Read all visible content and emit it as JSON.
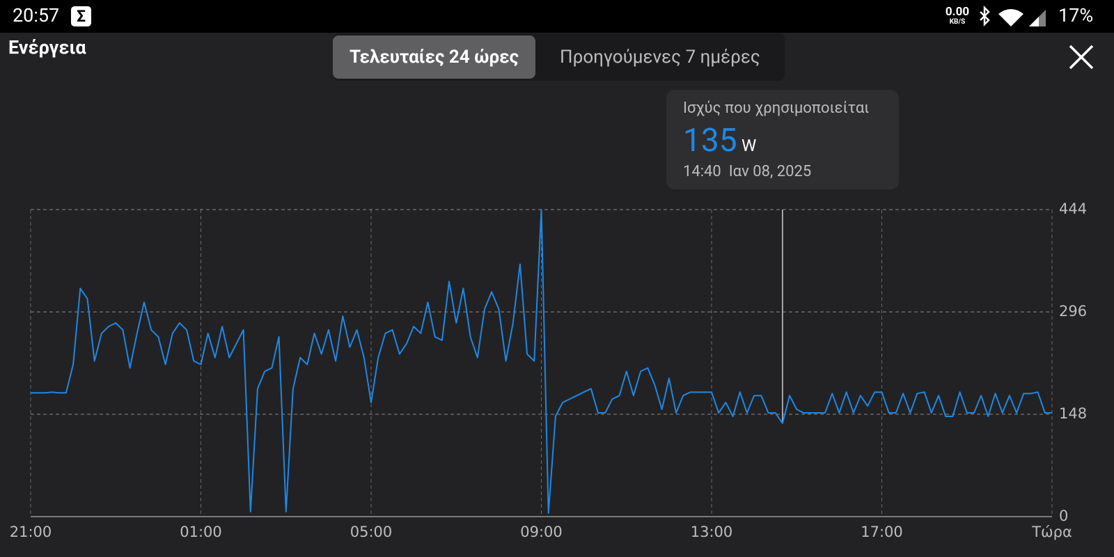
{
  "status_bar": {
    "time": "20:57",
    "app_icon": "Σ",
    "net_speed": "0.00",
    "net_unit": "KB/S",
    "battery": "17%"
  },
  "header": {
    "title": "Ενέργεια",
    "tabs": [
      "Τελευταίες 24 ώρες",
      "Προηγούμενες 7 ημέρες"
    ]
  },
  "tooltip": {
    "title": "Ισχύς που χρησιμοποιείται",
    "unit": "W",
    "time": "14:40  Ιαν 08, 2025"
  },
  "chart_data": {
    "type": "line",
    "color": "#1e88e5",
    "grid": true,
    "ylim": [
      0,
      444
    ],
    "yticks": [
      0,
      148,
      296,
      444
    ],
    "highlight_index": 106,
    "categories": [
      "21:00",
      null,
      null,
      null,
      null,
      null,
      null,
      null,
      null,
      null,
      null,
      null,
      null,
      null,
      null,
      null,
      null,
      null,
      null,
      null,
      null,
      null,
      null,
      null,
      "01:00",
      null,
      null,
      null,
      null,
      null,
      null,
      null,
      null,
      null,
      null,
      null,
      null,
      null,
      null,
      null,
      null,
      null,
      null,
      null,
      null,
      null,
      null,
      null,
      "05:00",
      null,
      null,
      null,
      null,
      null,
      null,
      null,
      null,
      null,
      null,
      null,
      null,
      null,
      null,
      null,
      null,
      null,
      null,
      null,
      null,
      null,
      null,
      null,
      "09:00",
      null,
      null,
      null,
      null,
      null,
      null,
      null,
      null,
      null,
      null,
      null,
      null,
      null,
      null,
      null,
      null,
      null,
      null,
      null,
      null,
      null,
      null,
      null,
      "13:00",
      null,
      null,
      null,
      null,
      null,
      null,
      null,
      null,
      null,
      null,
      null,
      null,
      null,
      null,
      null,
      null,
      null,
      null,
      null,
      null,
      null,
      null,
      null,
      "17:00",
      null,
      null,
      null,
      null,
      null,
      null,
      null,
      null,
      null,
      null,
      null,
      null,
      null,
      null,
      null,
      null,
      null,
      null,
      null,
      null,
      null,
      null,
      null,
      "Τώρα"
    ],
    "values": [
      179,
      179,
      179,
      180,
      179,
      179,
      220,
      330,
      315,
      225,
      265,
      275,
      280,
      270,
      215,
      265,
      310,
      270,
      260,
      220,
      265,
      280,
      270,
      225,
      220,
      265,
      230,
      275,
      230,
      250,
      270,
      7,
      185,
      210,
      215,
      260,
      7,
      185,
      230,
      220,
      265,
      235,
      270,
      225,
      290,
      245,
      270,
      230,
      165,
      230,
      265,
      270,
      235,
      250,
      275,
      265,
      310,
      260,
      255,
      340,
      280,
      330,
      260,
      230,
      300,
      325,
      300,
      225,
      280,
      365,
      235,
      225,
      444,
      5,
      145,
      165,
      170,
      175,
      180,
      185,
      150,
      150,
      170,
      175,
      210,
      175,
      210,
      215,
      190,
      155,
      200,
      150,
      175,
      180,
      180,
      180,
      180,
      150,
      165,
      145,
      180,
      150,
      175,
      175,
      150,
      150,
      135,
      175,
      155,
      150,
      150,
      150,
      150,
      178,
      150,
      180,
      150,
      175,
      160,
      180,
      180,
      150,
      150,
      178,
      150,
      178,
      180,
      150,
      175,
      145,
      145,
      180,
      150,
      150,
      175,
      145,
      178,
      150,
      175,
      150,
      178,
      178,
      180,
      150,
      150
    ]
  }
}
